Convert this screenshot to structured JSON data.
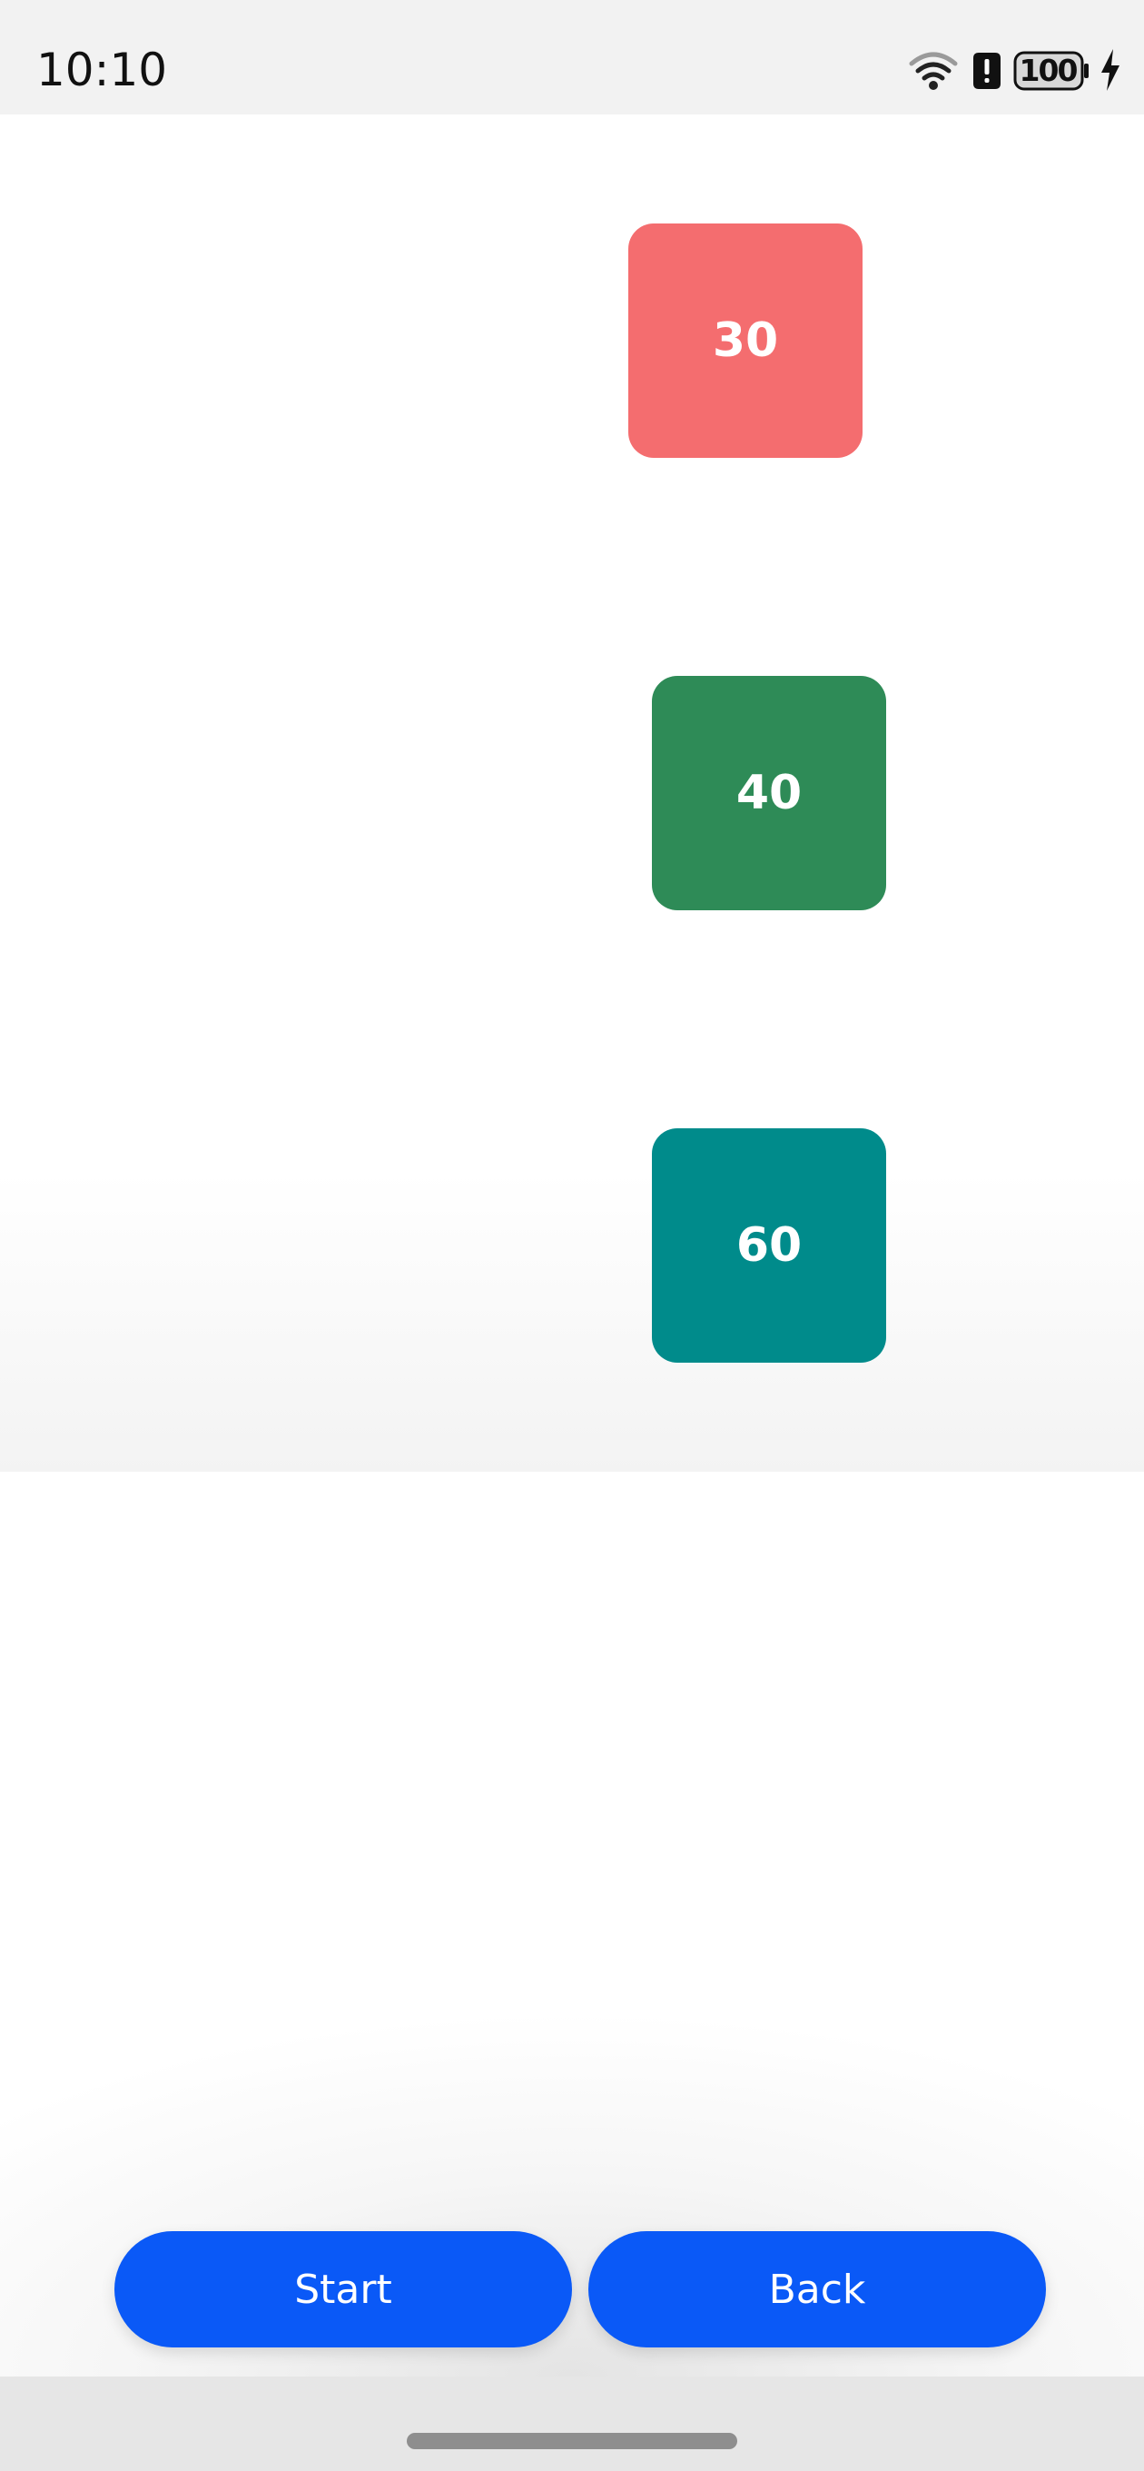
{
  "status_bar": {
    "time": "10:10",
    "battery_level": "100",
    "icons": [
      "wifi-icon",
      "alert-icon",
      "battery-icon",
      "charging-icon"
    ]
  },
  "animation": {
    "squares": [
      {
        "label": "30",
        "color": "#f46d6f"
      },
      {
        "label": "40",
        "color": "#2e8b57"
      },
      {
        "label": "60",
        "color": "#008b8b"
      }
    ]
  },
  "actions": {
    "start_label": "Start",
    "back_label": "Back",
    "button_color": "#0a59f7"
  }
}
